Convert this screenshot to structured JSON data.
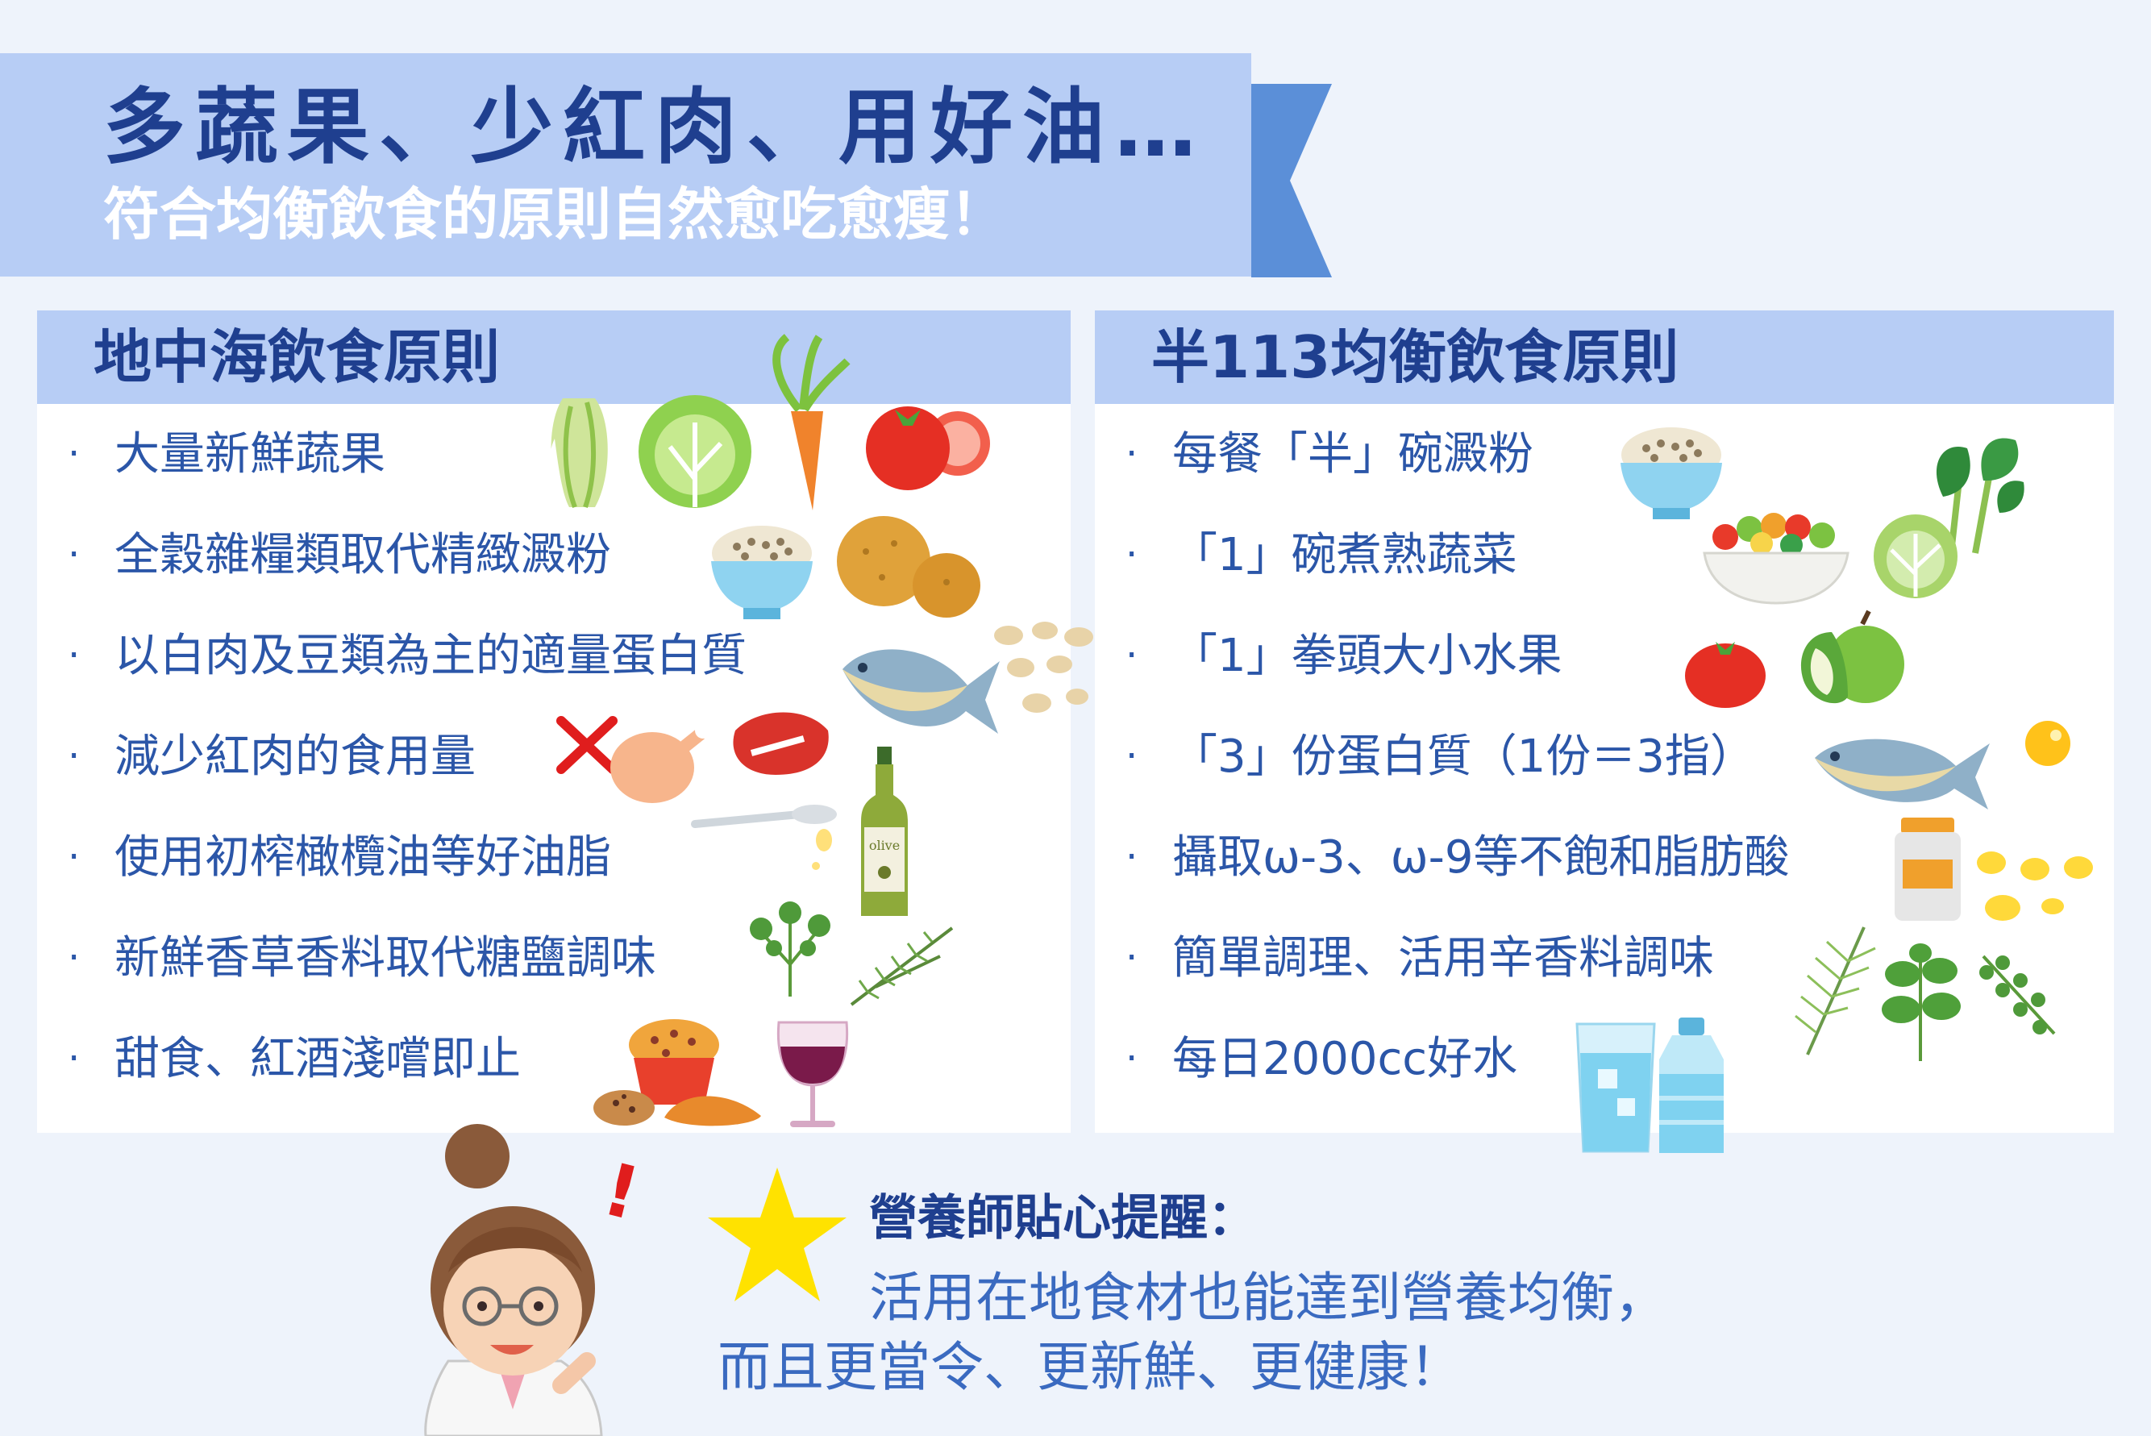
{
  "header": {
    "title": "多蔬果、少紅肉、用好油…",
    "subtitle": "符合均衡飲食的原則自然愈吃愈瘦！"
  },
  "left_panel": {
    "title": "地中海飲食原則",
    "items": [
      {
        "label": "大量新鮮蔬果",
        "icons": [
          "cabbage-icon",
          "lettuce-icon",
          "carrot-icon",
          "tomato-icon"
        ]
      },
      {
        "label": "全穀雜糧類取代精緻澱粉",
        "icons": [
          "grain-bowl-icon",
          "potato-icon"
        ]
      },
      {
        "label": "以白肉及豆類為主的適量蛋白質",
        "icons": [
          "fish-icon",
          "beans-icon"
        ]
      },
      {
        "label": "減少紅肉的食用量",
        "icons": [
          "red-x-icon",
          "chicken-icon",
          "steak-icon"
        ]
      },
      {
        "label": "使用初榨橄欖油等好油脂",
        "icons": [
          "spoon-icon",
          "olive-oil-bottle-icon"
        ]
      },
      {
        "label": "新鮮香草香料取代糖鹽調味",
        "icons": [
          "parsley-icon",
          "rosemary-icon"
        ]
      },
      {
        "label": "甜食、紅酒淺嚐即止",
        "icons": [
          "muffin-icon",
          "cookies-icon",
          "wine-glass-icon"
        ]
      }
    ],
    "olive_label": "olive"
  },
  "right_panel": {
    "title": "半113均衡飲食原則",
    "items": [
      {
        "label": "每餐「半」碗澱粉",
        "icons": [
          "rice-bowl-icon",
          "spinach-icon"
        ]
      },
      {
        "label": "「1」碗煮熟蔬菜",
        "icons": [
          "salad-bowl-icon",
          "cabbage-icon"
        ]
      },
      {
        "label": "「1」拳頭大小水果",
        "icons": [
          "tomato-icon",
          "apple-icon"
        ]
      },
      {
        "label": "「3」份蛋白質（1份＝3指）",
        "icons": [
          "fish-icon",
          "egg-icon"
        ]
      },
      {
        "label": "攝取ω-3、ω-9等不飽和脂肪酸",
        "icons": [
          "supplement-bottle-icon",
          "capsule-icon"
        ]
      },
      {
        "label": "簡單調理、活用辛香料調味",
        "icons": [
          "dill-icon",
          "basil-icon",
          "oregano-icon"
        ]
      },
      {
        "label": "每日2000cc好水",
        "icons": [
          "water-glass-icon",
          "water-bottle-icon"
        ]
      }
    ]
  },
  "footer": {
    "tip_title": "營養師貼心提醒：",
    "tip_line1": "活用在地食材也能達到營養均衡，",
    "tip_line2": "而且更當令、更新鮮、更健康！",
    "exclaim": "!"
  },
  "colors": {
    "background": "#eef3fb",
    "ribbon": "#b7cdf5",
    "ribbon_tail": "#5b8fd8",
    "title_blue": "#1f3f8f",
    "text_blue": "#2b56a8",
    "star_yellow": "#ffe200"
  }
}
